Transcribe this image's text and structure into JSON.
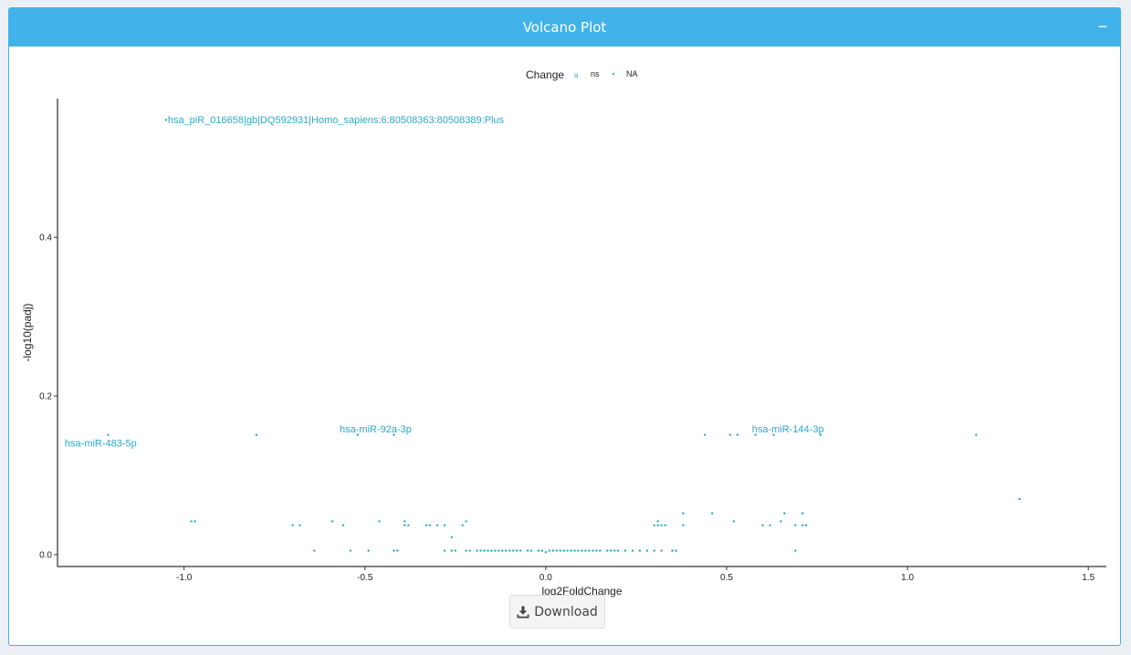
{
  "panel": {
    "title": "Volcano Plot",
    "collapse_label": "−",
    "download_label": "Download",
    "download_icon": "download-icon"
  },
  "chart_data": {
    "type": "scatter",
    "title": "",
    "xlabel": "log2FoldChange",
    "ylabel": "-log10(padj)",
    "xlim": [
      -1.35,
      1.55
    ],
    "ylim": [
      -0.015,
      0.575
    ],
    "xticks": [
      -1.0,
      -0.5,
      0.0,
      0.5,
      1.0,
      1.5
    ],
    "xtick_labels": [
      "-1.0",
      "-0.5",
      "0.0",
      "0.5",
      "1.0",
      "1.5"
    ],
    "yticks": [
      0.0,
      0.2,
      0.4
    ],
    "ytick_labels": [
      "0.0",
      "0.2",
      "0.4"
    ],
    "grid": false,
    "point_color": "#29a9c9",
    "legend": {
      "title": "Change",
      "position": "top",
      "entries": [
        {
          "label": "ns",
          "key_text": "a"
        },
        {
          "label": "NA"
        }
      ]
    },
    "annotations": [
      {
        "text": "hsa_piR_016658|gb|DQ592931|Homo_sapiens:6:80508363:80508389:Plus",
        "x": -1.045,
        "y": 0.548,
        "anchor": "start"
      },
      {
        "text": "hsa-miR-483-5p",
        "x": -1.33,
        "y": 0.14,
        "anchor": "start"
      },
      {
        "text": "hsa-miR-92a-3p",
        "x": -0.57,
        "y": 0.158,
        "anchor": "start"
      },
      {
        "text": "hsa-miR-144-3p",
        "x": 0.57,
        "y": 0.158,
        "anchor": "start"
      }
    ],
    "x": [
      -1.05,
      -1.21,
      -0.8,
      -0.52,
      -0.42,
      0.44,
      0.51,
      0.53,
      0.58,
      0.63,
      0.76,
      1.19,
      1.31,
      -0.98,
      -0.97,
      -0.7,
      -0.68,
      -0.59,
      -0.56,
      -0.46,
      -0.39,
      -0.39,
      -0.38,
      -0.33,
      -0.32,
      -0.3,
      -0.28,
      -0.26,
      -0.23,
      -0.22,
      -0.26,
      -0.64,
      -0.54,
      -0.49,
      -0.42,
      -0.41,
      -0.28,
      -0.25,
      -0.22,
      -0.21,
      -0.19,
      -0.18,
      -0.17,
      -0.16,
      -0.15,
      -0.14,
      -0.13,
      -0.12,
      -0.11,
      -0.1,
      -0.09,
      -0.08,
      -0.07,
      -0.05,
      -0.04,
      -0.02,
      -0.01,
      0.0,
      0.01,
      0.02,
      0.03,
      0.04,
      0.05,
      0.06,
      0.07,
      0.08,
      0.09,
      0.1,
      0.11,
      0.12,
      0.13,
      0.14,
      0.15,
      0.17,
      0.18,
      0.19,
      0.2,
      0.22,
      0.24,
      0.26,
      0.28,
      0.3,
      0.32,
      0.35,
      0.36,
      0.3,
      0.31,
      0.31,
      0.32,
      0.33,
      0.35,
      0.38,
      0.38,
      0.46,
      0.52,
      0.6,
      0.62,
      0.65,
      0.66,
      0.69,
      0.71,
      0.71,
      0.72,
      0.69
    ],
    "y": [
      0.548,
      0.151,
      0.151,
      0.151,
      0.151,
      0.151,
      0.151,
      0.151,
      0.151,
      0.151,
      0.151,
      0.151,
      0.07,
      0.042,
      0.042,
      0.037,
      0.037,
      0.042,
      0.037,
      0.042,
      0.042,
      0.037,
      0.037,
      0.037,
      0.037,
      0.037,
      0.037,
      0.022,
      0.037,
      0.042,
      0.005,
      0.005,
      0.005,
      0.005,
      0.005,
      0.005,
      0.005,
      0.005,
      0.005,
      0.005,
      0.005,
      0.005,
      0.005,
      0.005,
      0.005,
      0.005,
      0.005,
      0.005,
      0.005,
      0.005,
      0.005,
      0.005,
      0.005,
      0.005,
      0.005,
      0.005,
      0.005,
      0.003,
      0.005,
      0.005,
      0.005,
      0.005,
      0.005,
      0.005,
      0.005,
      0.005,
      0.005,
      0.005,
      0.005,
      0.005,
      0.005,
      0.005,
      0.005,
      0.005,
      0.005,
      0.005,
      0.005,
      0.005,
      0.005,
      0.005,
      0.005,
      0.005,
      0.005,
      0.005,
      0.005,
      0.037,
      0.037,
      0.042,
      0.037,
      0.037,
      0.005,
      0.052,
      0.037,
      0.052,
      0.042,
      0.037,
      0.037,
      0.042,
      0.052,
      0.037,
      0.052,
      0.037,
      0.037,
      0.005
    ]
  }
}
